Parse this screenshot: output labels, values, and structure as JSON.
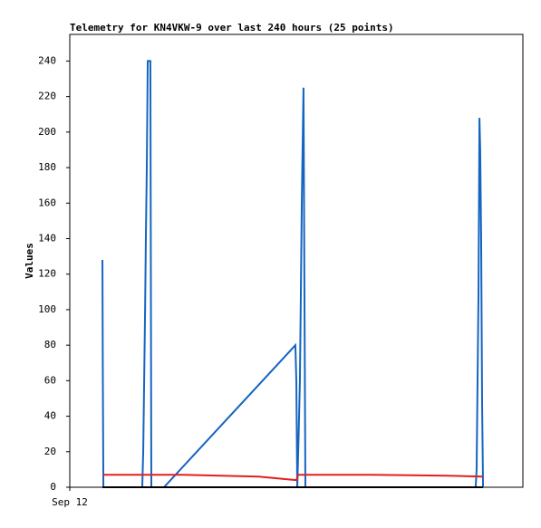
{
  "chart_data": {
    "type": "line",
    "title": "Telemetry for KN4VKW-9 over last 240 hours (25 points)",
    "y_label": "Values",
    "xlim": [
      0,
      240
    ],
    "xticks": [
      {
        "value": 0,
        "label": "Sep 12"
      }
    ],
    "ylim": [
      0,
      255
    ],
    "yticks": [
      0,
      20,
      40,
      60,
      80,
      100,
      120,
      140,
      160,
      180,
      200,
      220,
      240
    ],
    "grid": false,
    "series": [
      {
        "color": "#1565c0",
        "x": [
          17.3,
          17.5,
          17.8,
          38.4,
          38.9,
          39.4,
          39.9,
          40.3,
          40.8,
          41.3,
          42.7,
          43.2,
          49.9,
          119.5,
          120,
          120.5,
          121,
          121.9,
          122.9,
          123.8,
          124.3,
          124.8,
          215,
          215.5,
          216.5,
          217,
          217.4,
          217.9,
          218.4,
          218.9
        ],
        "values": [
          128,
          65,
          0,
          0,
          20,
          60,
          100,
          140,
          180,
          240,
          240,
          0,
          0,
          80,
          60,
          0,
          20,
          60,
          160,
          225,
          110,
          0,
          0,
          10,
          110,
          208,
          190,
          140,
          48,
          0
        ]
      },
      {
        "color": "#e02020",
        "x": [
          17.3,
          60,
          100,
          120,
          121,
          160,
          200,
          218.9
        ],
        "values": [
          7,
          7,
          6,
          4,
          7,
          7,
          6.5,
          6
        ]
      },
      {
        "color": "#000000",
        "x": [
          17.3,
          218.9
        ],
        "values": [
          0,
          0
        ]
      }
    ]
  }
}
